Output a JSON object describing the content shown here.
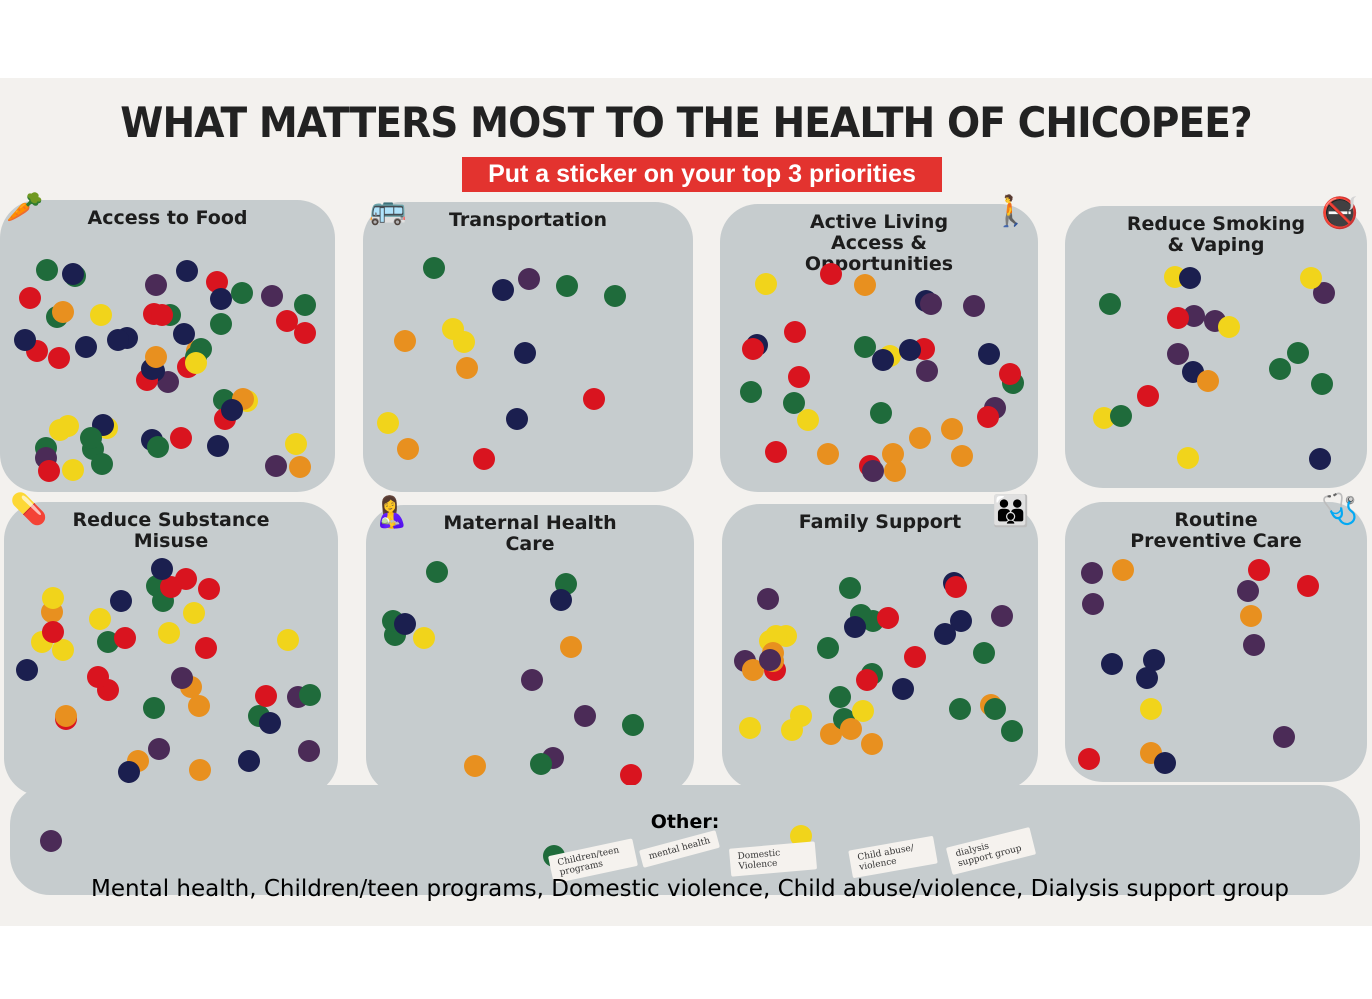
{
  "title": "WHAT MATTERS MOST TO THE HEALTH OF CHICOPEE?",
  "subtitle": "Put a sticker on your top 3 priorities",
  "sticker_colors": {
    "r": "#d9141f",
    "o": "#e8901f",
    "y": "#f1d41b",
    "g": "#1f6b3b",
    "n": "#1b1f4f",
    "p": "#4b2b57"
  },
  "panels": [
    {
      "title": "Access to Food",
      "icon": "food-icon",
      "stickers": "pgngoyrgnrgorgrgyrnynpgrgyoprgrnnoygnpyonnnrgngrgyyrrnngngrp"
    },
    {
      "title": "Transportation",
      "icon": "bus-car-icon",
      "stickers": "pooygggnnynrryo"
    },
    {
      "title": "Active Living Access & Opportunities",
      "icon": "people-walking-icon",
      "stickers": "yrggoyrpprngoooogronrnpnprrrrgyonp"
    },
    {
      "title": "Reduce Smoking & Vaping",
      "icon": "no-smoking-icon",
      "stickers": "pggpnyyoppngyyrgrnyg"
    },
    {
      "title": "Reduce Substance Misuse",
      "icon": "pill-bottle-icon",
      "stickers": "orognpgrogroynpryonpgyyynrrgyryornnrrgp"
    },
    {
      "title": "Maternal Health Care",
      "icon": "mother-baby-icon",
      "stickers": "grgpggoonpgynpg"
    },
    {
      "title": "Family Support",
      "icon": "family-icon",
      "stickers": "ypyyoogoggnrorggyonnpnoryyrgpgggoyngpgr"
    },
    {
      "title": "Routine Preventive Care",
      "icon": "doctor-patient-icon",
      "stickers": "rooyproprpnpnpnn"
    }
  ],
  "other": {
    "label": "Other:",
    "stickers": "pgy",
    "notes": [
      "Children/teen programs",
      "mental health",
      "Domestic Violence",
      "Child abuse/ violence",
      "dialysis support group"
    ],
    "caption": "Mental health, Children/teen programs, Domestic violence, Child abuse/violence, Dialysis support group"
  }
}
